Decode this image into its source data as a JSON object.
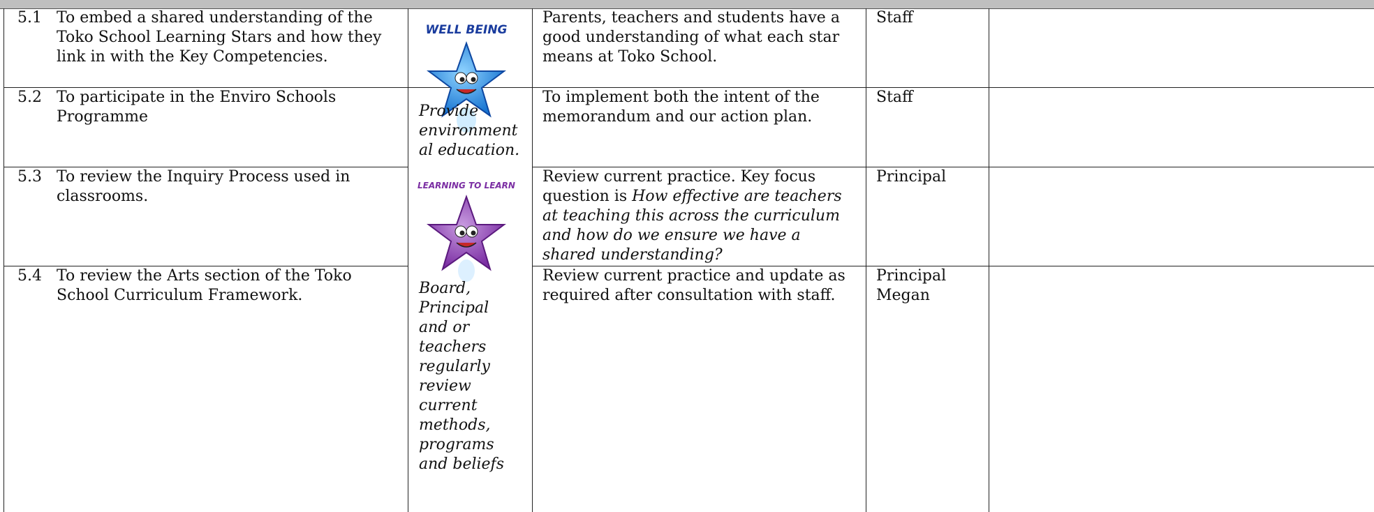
{
  "table": {
    "rows": [
      {
        "number": "5.1",
        "goal": "To embed a shared understanding of the Toko School Learning Stars and how they link in with the Key Competencies.",
        "action": "Parents, teachers and students have a good understanding of what each star means at Toko School.",
        "responsible": [
          "Staff"
        ]
      },
      {
        "number": "5.2",
        "goal": "To participate in the Enviro Schools Programme",
        "action": "To implement both the intent of the memorandum and our action plan.",
        "responsible": [
          "Staff"
        ]
      },
      {
        "number": "5.3",
        "goal": "To review the Inquiry Process used in classrooms.",
        "action": "Review current practice.  Key focus question is",
        "action_italic": "How effective are teachers at teaching this across the curriculum and how do we ensure we have a shared understanding?",
        "responsible": [
          "Principal"
        ]
      },
      {
        "number": "5.4",
        "goal": "To review the Arts section of the Toko School Curriculum Framework.",
        "action": "Review current practice and update as required after consultation with staff.",
        "responsible": [
          "Principal",
          "Megan"
        ]
      }
    ],
    "stars": [
      {
        "label": "WELL BEING",
        "caption": "Provide environmental education."
      },
      {
        "label": "LEARNING TO LEARN",
        "caption": "Board, Principal and or teachers regularly review current methods, programs and beliefs"
      }
    ]
  }
}
